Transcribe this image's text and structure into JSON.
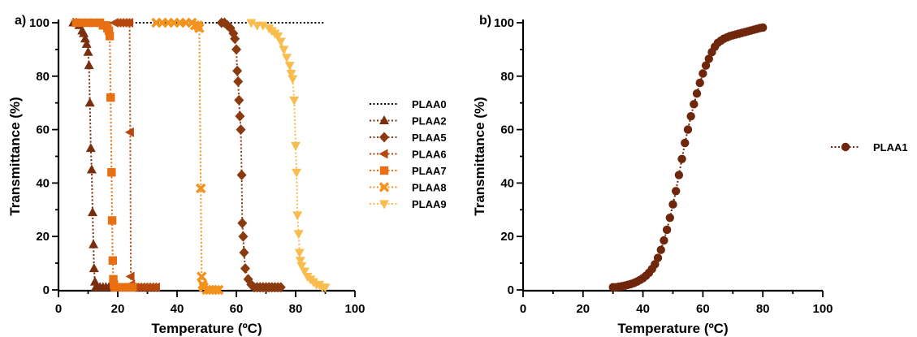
{
  "chart_data": [
    {
      "panel_label": "a)",
      "type": "line",
      "xlabel": "Temperature (ºC)",
      "ylabel": "Transmittance (%)",
      "xlim": [
        0,
        100
      ],
      "ylim": [
        0,
        100
      ],
      "xticks": [
        0,
        20,
        40,
        60,
        80,
        100
      ],
      "yticks": [
        0,
        20,
        40,
        60,
        80,
        100
      ],
      "legend_position": "right",
      "series": [
        {
          "name": "PLAA0",
          "color": "#000000",
          "marker": "none",
          "x": [
            5,
            90
          ],
          "y": [
            100,
            100
          ]
        },
        {
          "name": "PLAA2",
          "color": "#7a2e0e",
          "marker": "triangle-up",
          "x": [
            5,
            6,
            7,
            8,
            8.5,
            9,
            9.5,
            10,
            10.3,
            10.6,
            10.9,
            11.2,
            11.5,
            11.8,
            12,
            12.3,
            12.6,
            13,
            14,
            15,
            16,
            17
          ],
          "y": [
            100,
            100,
            99,
            97,
            96,
            94,
            92,
            89,
            84,
            70,
            53,
            45,
            29,
            17,
            8,
            3,
            1,
            1,
            1,
            1,
            1,
            1
          ]
        },
        {
          "name": "PLAA5",
          "color": "#8b3a0f",
          "marker": "diamond",
          "x": [
            55,
            56,
            57,
            58,
            59,
            59.5,
            60,
            60.3,
            60.6,
            60.9,
            61.2,
            61.5,
            61.8,
            62,
            62.3,
            62.6,
            63,
            64,
            65,
            66,
            67,
            68,
            69,
            70,
            71,
            72,
            73,
            74,
            75
          ],
          "y": [
            100,
            100,
            99,
            98,
            96,
            94,
            90,
            82,
            78,
            71,
            65,
            60,
            43,
            25,
            20,
            14,
            8,
            4,
            2,
            1,
            1,
            1,
            1,
            1,
            1,
            1,
            1,
            1,
            1
          ]
        },
        {
          "name": "PLAA6",
          "color": "#b5470f",
          "marker": "triangle-left",
          "x": [
            19,
            20,
            21,
            22,
            23,
            24,
            24.2,
            24.4,
            24.6,
            25,
            26,
            27,
            28,
            29,
            30,
            31,
            32,
            33
          ],
          "y": [
            100,
            100,
            100,
            100,
            100,
            100,
            59,
            5,
            2,
            1,
            1,
            1,
            1,
            1,
            1,
            1,
            1,
            1
          ]
        },
        {
          "name": "PLAA7",
          "color": "#e86f12",
          "marker": "square",
          "x": [
            6,
            8,
            10,
            12,
            14,
            15,
            16,
            16.5,
            17,
            17.3,
            17.6,
            17.9,
            18.1,
            18.3,
            18.5,
            18.7,
            19,
            20,
            21,
            22,
            23,
            24,
            25
          ],
          "y": [
            100,
            100,
            100,
            100,
            100,
            99,
            99,
            98,
            97,
            95,
            72,
            44,
            26,
            11,
            4,
            2,
            1,
            1,
            1,
            1,
            1,
            1,
            1
          ]
        },
        {
          "name": "PLAA8",
          "color": "#f3921c",
          "marker": "cross",
          "x": [
            33,
            35,
            37,
            39,
            41,
            43,
            45,
            46,
            47,
            47.5,
            48,
            48.3,
            48.6,
            49,
            50,
            51,
            52,
            53,
            54
          ],
          "y": [
            100,
            100,
            100,
            100,
            100,
            100,
            100,
            99,
            99,
            98,
            38,
            5,
            2,
            1,
            0,
            0,
            0,
            0,
            0
          ]
        },
        {
          "name": "PLAA9",
          "color": "#f9bd4f",
          "marker": "triangle-down",
          "x": [
            65,
            67,
            69,
            71,
            72,
            73,
            74,
            75,
            76,
            77,
            78,
            78.5,
            79,
            79.5,
            80,
            80.3,
            80.6,
            81,
            81.3,
            81.6,
            82,
            83,
            84,
            85,
            86,
            87,
            88,
            89,
            90
          ],
          "y": [
            100,
            99,
            99,
            98,
            97,
            96,
            95,
            93,
            90,
            87,
            84,
            81,
            79,
            71,
            54,
            44,
            28,
            21,
            14,
            11,
            9,
            7,
            5,
            4,
            3,
            2,
            2,
            1,
            1
          ]
        }
      ]
    },
    {
      "panel_label": "b)",
      "type": "line",
      "xlabel": "Temperature (ºC)",
      "ylabel": "Transmittance (%)",
      "xlim": [
        0,
        100
      ],
      "ylim": [
        0,
        100
      ],
      "xticks": [
        0,
        20,
        40,
        60,
        80,
        100
      ],
      "yticks": [
        0,
        20,
        40,
        60,
        80,
        100
      ],
      "legend_position": "right",
      "series": [
        {
          "name": "PLAA1",
          "color": "#6e260c",
          "marker": "circle",
          "x": [
            30,
            31,
            32,
            33,
            34,
            35,
            36,
            37,
            38,
            39,
            40,
            41,
            42,
            43,
            44,
            45,
            46,
            47,
            48,
            49,
            50,
            51,
            52,
            53,
            54,
            55,
            56,
            57,
            58,
            59,
            60,
            61,
            62,
            63,
            64,
            65,
            66,
            67,
            68,
            69,
            70,
            71,
            72,
            73,
            74,
            75,
            76,
            77,
            78,
            79,
            80
          ],
          "y": [
            1,
            1,
            1.2,
            1.4,
            1.6,
            1.9,
            2.2,
            2.6,
            3.1,
            3.7,
            4.4,
            5.3,
            6.4,
            7.8,
            9.6,
            12,
            15,
            18.5,
            22.5,
            27,
            32,
            37,
            43,
            49,
            55,
            60,
            65,
            69.5,
            73.5,
            77.5,
            81,
            84,
            86.5,
            89,
            91,
            92.5,
            93.3,
            94,
            94.5,
            95,
            95.3,
            95.6,
            95.9,
            96.2,
            96.5,
            96.8,
            97.1,
            97.4,
            97.7,
            98,
            98.2
          ]
        }
      ]
    }
  ]
}
